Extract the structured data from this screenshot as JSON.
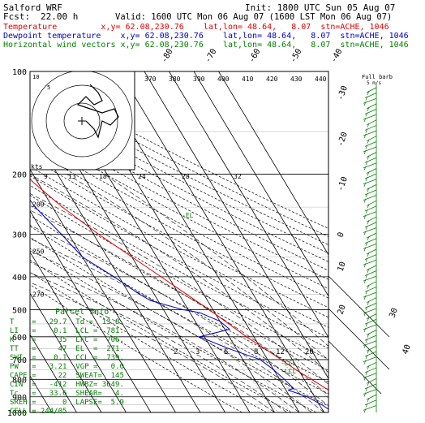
{
  "header": {
    "model": "Salford WRF",
    "init": "Init: 1800 UTC Sun 05 Aug 07",
    "fcst_label": "Fcst:",
    "fcst_value": "22.00 h",
    "valid": "Valid: 1600 UTC Mon 06 Aug 07 (1600 LST Mon 06 Aug 07)",
    "temperature_line": "Temperature         x,y= 62.08,230.76    lat,lon= 48.64,   8.07  stn=ACHE, 1046",
    "dewpoint_line": "Dewpoint temperature    x,y= 62.08,230.76    lat,lon= 48.64,   8.07  stn=ACHE, 1046",
    "wind_line": "Horizontal wind vectors x,y= 62.08,230.76    lat,lon= 48.64,   8.07  stn=ACHE, 1046",
    "colors": {
      "temperature": "#e00000",
      "dewpoint": "#0000c8",
      "wind": "#008000"
    }
  },
  "chart_data": {
    "type": "line",
    "subtype": "skew-T log-p",
    "pressure_axis": {
      "scale": "log",
      "range_hpa": [
        1000,
        100
      ],
      "labels": [
        "100",
        "200",
        "300",
        "400",
        "500",
        "600",
        "700",
        "800",
        "900",
        "1000"
      ]
    },
    "height_labels_km": [
      {
        "p": 244,
        "text": "200"
      },
      {
        "p": 335,
        "text": "250"
      },
      {
        "p": 448,
        "text": "270"
      }
    ],
    "isotherm_labels": [
      "-30",
      "-20",
      "-10",
      "0",
      "10",
      "20",
      "30",
      "40"
    ],
    "top_temperature_labels": [
      "-80",
      "-70",
      "-60",
      "-50",
      "-40"
    ],
    "theta_labels": [
      "370",
      "380",
      "390",
      "400",
      "410",
      "420",
      "430",
      "440"
    ],
    "mixing_ratio_labels_high": [
      "9",
      "13",
      "18",
      "24",
      "28",
      "32"
    ],
    "mixing_ratio_labels_low": [
      "2",
      "3",
      "5",
      "8",
      "12",
      "20"
    ],
    "el_label": "-EL",
    "ccl_label": "-CCL",
    "lcl_label": "-LCL",
    "temperature_series": {
      "name": "Temperature",
      "points": [
        [
          1000,
          29.7
        ],
        [
          950,
          25
        ],
        [
          900,
          20.5
        ],
        [
          850,
          16.5
        ],
        [
          800,
          13
        ],
        [
          750,
          9
        ],
        [
          700,
          5.5
        ],
        [
          650,
          1.5
        ],
        [
          600,
          -3
        ],
        [
          550,
          -7
        ],
        [
          500,
          -11.5
        ],
        [
          450,
          -17
        ],
        [
          400,
          -23
        ],
        [
          350,
          -30
        ],
        [
          300,
          -38
        ],
        [
          250,
          -46
        ],
        [
          210,
          -52
        ],
        [
          190,
          -53
        ],
        [
          170,
          -53.5
        ],
        [
          150,
          -55
        ],
        [
          130,
          -56
        ],
        [
          110,
          -57
        ],
        [
          100,
          -58
        ]
      ]
    },
    "dewpoint_series": {
      "name": "Dewpoint temperature",
      "points": [
        [
          1000,
          13.8
        ],
        [
          950,
          11
        ],
        [
          900,
          7
        ],
        [
          860,
          1
        ],
        [
          850,
          3.5
        ],
        [
          800,
          2
        ],
        [
          750,
          0
        ],
        [
          700,
          -3
        ],
        [
          650,
          -13
        ],
        [
          600,
          -22
        ],
        [
          570,
          -8
        ],
        [
          540,
          -10
        ],
        [
          510,
          -16
        ],
        [
          500,
          -22
        ],
        [
          470,
          -33
        ],
        [
          450,
          -36
        ],
        [
          400,
          -42
        ],
        [
          350,
          -50
        ],
        [
          300,
          -53
        ],
        [
          250,
          -57
        ],
        [
          220,
          -58
        ],
        [
          190,
          -65
        ],
        [
          165,
          -75
        ],
        [
          145,
          -70
        ],
        [
          125,
          -68
        ],
        [
          110,
          -60
        ],
        [
          100,
          -55
        ]
      ]
    },
    "wind_series": {
      "name": "Horizontal wind vectors",
      "count": 60
    },
    "hodograph": {
      "ring_labels": [
        "5",
        "10"
      ],
      "points_uv": [
        [
          2,
          9
        ],
        [
          4,
          7
        ],
        [
          5,
          5
        ],
        [
          3,
          4
        ],
        [
          1,
          6
        ],
        [
          -1,
          4
        ],
        [
          2,
          3
        ],
        [
          5,
          2
        ],
        [
          8,
          3
        ],
        [
          9,
          1
        ],
        [
          7,
          -1
        ],
        [
          5,
          0
        ],
        [
          4,
          -4
        ],
        [
          3,
          -2
        ],
        [
          1,
          0
        ]
      ]
    },
    "kts_label": "kts",
    "fullbarb_label": "Full barb",
    "fullbarb_values": "5 m/s"
  },
  "parcel": {
    "title": "Parcel Info",
    "rows": [
      "T    =   29.7  Td =  13.8",
      "LI   =    0.1  LCL =  781.",
      "K    =     35  LFC =  706.",
      "TT   =     47  EL  =  271.",
      "SWI  =    0.1  CCL =  739.",
      "PW   =   3.21  VGP =   0.0",
      "CAPE =     22  SWEAT=  145",
      "CIN  =   -412  HWBZ= 3649.",
      "Tc   =   33.6  SHEAR=   4.",
      "SREH =      0  LAPSE=  5.9",
      "CELL = 244/05"
    ]
  }
}
